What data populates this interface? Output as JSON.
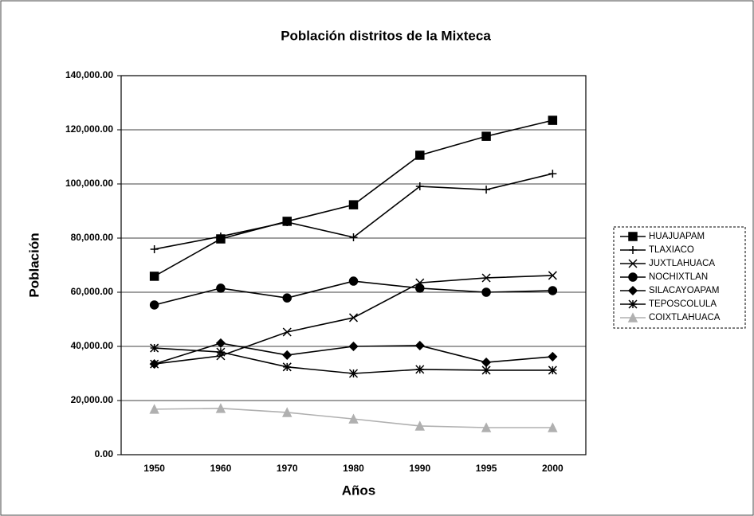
{
  "chart_data": {
    "type": "line",
    "title": "Población distritos de la Mixteca",
    "xlabel": "Años",
    "ylabel": "Población",
    "categories": [
      "1950",
      "1960",
      "1970",
      "1980",
      "1990",
      "1995",
      "2000"
    ],
    "ylim": [
      0,
      140000
    ],
    "yticks": [
      {
        "value": 0,
        "label": "0.00"
      },
      {
        "value": 20000,
        "label": "20,000.00"
      },
      {
        "value": 40000,
        "label": "40,000.00"
      },
      {
        "value": 60000,
        "label": "60,000.00"
      },
      {
        "value": 80000,
        "label": "80,000.00"
      },
      {
        "value": 100000,
        "label": "100,000.00"
      },
      {
        "value": 120000,
        "label": "120,000.00"
      },
      {
        "value": 140000,
        "label": "140,000.00"
      }
    ],
    "grid": true,
    "legend": "right",
    "series": [
      {
        "name": "HUAJUAPAM",
        "color": "#000000",
        "marker": "square",
        "values": [
          65900,
          79700,
          86200,
          92300,
          110600,
          117600,
          123500
        ]
      },
      {
        "name": "TLAXIACO",
        "color": "#000000",
        "marker": "plus",
        "values": [
          75900,
          80600,
          85900,
          80300,
          99100,
          97900,
          103800
        ]
      },
      {
        "name": "JUXTLAHUACA",
        "color": "#000000",
        "marker": "x",
        "values": [
          33500,
          36500,
          45300,
          50600,
          63500,
          65300,
          66200
        ]
      },
      {
        "name": "NOCHIXTLAN",
        "color": "#000000",
        "marker": "circle",
        "values": [
          55300,
          61500,
          57900,
          64100,
          61500,
          60000,
          60600
        ]
      },
      {
        "name": "SILACAYOAPAM",
        "color": "#000000",
        "marker": "diamond",
        "values": [
          33500,
          41200,
          36800,
          40000,
          40300,
          34100,
          36200
        ]
      },
      {
        "name": "TEPOSCOLULA",
        "color": "#000000",
        "marker": "star",
        "values": [
          39400,
          37900,
          32400,
          30000,
          31500,
          31200,
          31200
        ]
      },
      {
        "name": "COIXTLAHUACA",
        "color": "#b0b0b0",
        "marker": "triangle",
        "values": [
          16800,
          17100,
          15600,
          13200,
          10600,
          10000,
          10000
        ]
      }
    ]
  }
}
